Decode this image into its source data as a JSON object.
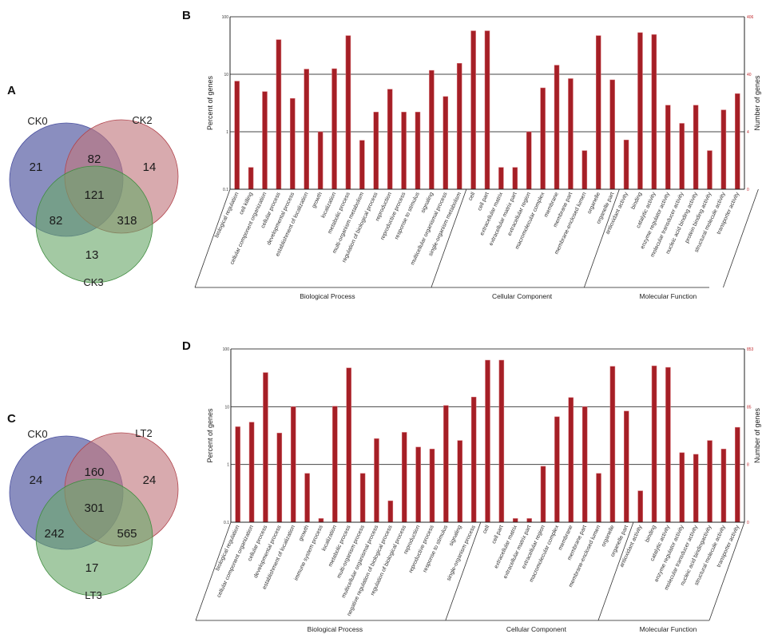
{
  "panels": {
    "a": "A",
    "b": "B",
    "c": "C",
    "d": "D"
  },
  "venn_a": {
    "sets": [
      "CK0",
      "CK2",
      "CK3"
    ],
    "regions": {
      "only_1": "21",
      "only_2": "14",
      "only_3": "13",
      "r12": "82",
      "r13": "82",
      "r23": "318",
      "r123": "121"
    },
    "colors": [
      "#5d63a6",
      "#c0767c",
      "#6aa86a"
    ]
  },
  "venn_c": {
    "sets": [
      "CK0",
      "LT2",
      "LT3"
    ],
    "regions": {
      "only_1": "24",
      "only_2": "24",
      "only_3": "17",
      "r12": "160",
      "r13": "242",
      "r23": "565",
      "r123": "301"
    },
    "colors": [
      "#5d63a6",
      "#c0767c",
      "#6aa86a"
    ]
  },
  "chart_data": [
    {
      "type": "bar",
      "panel": "B",
      "scale": "log",
      "ylabel": "Percent of genes",
      "y2label": "Number of genes",
      "ylim": [
        0.1,
        100
      ],
      "yticks": [
        "100",
        "10",
        "1",
        "0.1"
      ],
      "y2ticks": [
        "406",
        "40",
        "4",
        "0"
      ],
      "bar_color": "#a51f26",
      "groups": [
        {
          "name": "Biological Process",
          "count": 17
        },
        {
          "name": "Cellular Component",
          "count": 11
        },
        {
          "name": "Molecular Function",
          "count": 10
        }
      ],
      "categories": [
        "biological regulation",
        "cell killing",
        "cellular component organization",
        "cellular process",
        "developmental process",
        "establishment of localization",
        "growth",
        "localization",
        "metabolic process",
        "multi-organism metabolism",
        "regulation of biological process",
        "reproduction",
        "reproductive process",
        "response to stimulus",
        "signaling",
        "multicellular organismal process",
        "single-organism metabolism",
        "cell",
        "cell part",
        "extracellular matrix",
        "extracellular matrix part",
        "extracellular region",
        "macromolecular complex",
        "membrane",
        "membrane part",
        "membrane-enclosed lumen",
        "organelle",
        "organelle part",
        "antioxidant activity",
        "binding",
        "catalytic activity",
        "enzyme regulator activity",
        "molecular transducer activity",
        "nucleic acid binding activity",
        "protein binding activity",
        "structural molecule activity",
        "transporter activity"
      ],
      "values": [
        7.6,
        0.24,
        5.0,
        40,
        3.8,
        12.3,
        1.0,
        12.5,
        47,
        0.71,
        2.2,
        5.5,
        2.2,
        2.2,
        11.7,
        4.1,
        15.5,
        57,
        57,
        0.24,
        0.24,
        1.0,
        5.8,
        14.4,
        8.4,
        0.47,
        47,
        8.0,
        0.72,
        53,
        49,
        2.9,
        1.4,
        2.9,
        0.47,
        2.4,
        4.6
      ]
    },
    {
      "type": "bar",
      "panel": "D",
      "scale": "log",
      "ylabel": "Percent of genes",
      "y2label": "Number of genes",
      "ylim": [
        0.1,
        100
      ],
      "yticks": [
        "100",
        "10",
        "1",
        "0.1"
      ],
      "y2ticks": [
        "853",
        "85",
        "8",
        "0"
      ],
      "bar_color": "#a51f26",
      "groups": [
        {
          "name": "Biological Process",
          "count": 18
        },
        {
          "name": "Cellular Component",
          "count": 11
        },
        {
          "name": "Molecular Function",
          "count": 8
        }
      ],
      "categories": [
        "biological regulation",
        "cellular component organization",
        "cellular process",
        "developmental process",
        "establishment of localization",
        "growth",
        "immune system process",
        "localization",
        "metabolic process",
        "multi-organism process",
        "multicellular organismal process",
        "negative regulation of biological process",
        "regulation of biological process",
        "reproduction",
        "reproductive process",
        "response  to stimulus",
        "signaling",
        "single-organism process",
        "cell",
        "cell part",
        "extracellular matrix",
        "extracellular matrix part",
        "extracellular region",
        "macromolecular complex",
        "membrane",
        "membrane part",
        "membrane-enclosed lumen",
        "organelle",
        "organelle part",
        "antioxidant activity",
        "binding",
        "catalytic activity",
        "enzyme regulator activity",
        "molecular transducer activity",
        "nucleic acid bindingactivity",
        "structural molecule activity",
        "transporter activity"
      ],
      "values": [
        4.5,
        5.4,
        39,
        3.5,
        10,
        0.7,
        0.116,
        10.2,
        47,
        0.7,
        2.8,
        0.235,
        3.6,
        2.0,
        1.85,
        10.5,
        2.6,
        14.7,
        64,
        64,
        0.116,
        0.116,
        0.93,
        6.7,
        14.4,
        10,
        0.7,
        50,
        8.4,
        0.35,
        51,
        48,
        1.6,
        1.5,
        2.6,
        1.85,
        4.4
      ]
    }
  ]
}
